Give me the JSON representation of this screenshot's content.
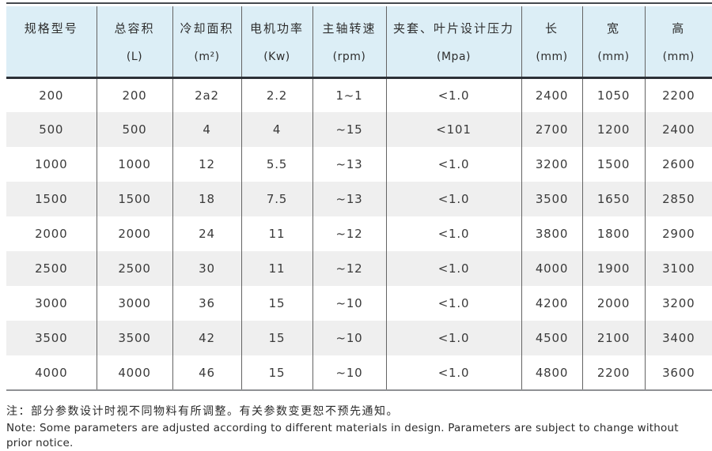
{
  "table": {
    "columns": [
      {
        "name": "规格型号",
        "unit": ""
      },
      {
        "name": "总容积",
        "unit": "(L)"
      },
      {
        "name": "冷却面积",
        "unit": "(m²)"
      },
      {
        "name": "电机功率",
        "unit": "(Kw)"
      },
      {
        "name": "主轴转速",
        "unit": "(rpm)"
      },
      {
        "name": "夹套、叶片设计压力",
        "unit": "(Mpa)"
      },
      {
        "name": "长",
        "unit": "(mm)"
      },
      {
        "name": "宽",
        "unit": "(mm)"
      },
      {
        "name": "高",
        "unit": "(mm)"
      }
    ],
    "rows": [
      [
        "200",
        "200",
        "2a2",
        "2.2",
        "1~1",
        "<1.0",
        "2400",
        "1050",
        "2200"
      ],
      [
        "500",
        "500",
        "4",
        "4",
        "~15",
        "<101",
        "2700",
        "1200",
        "2400"
      ],
      [
        "1000",
        "1000",
        "12",
        "5.5",
        "~13",
        "<1.0",
        "3200",
        "1500",
        "2600"
      ],
      [
        "1500",
        "1500",
        "18",
        "7.5",
        "~13",
        "<1.0",
        "3500",
        "1650",
        "2850"
      ],
      [
        "2000",
        "2000",
        "24",
        "11",
        "~12",
        "<1.0",
        "3800",
        "1800",
        "2900"
      ],
      [
        "2500",
        "2500",
        "30",
        "11",
        "~12",
        "<1.0",
        "4000",
        "1900",
        "3100"
      ],
      [
        "3000",
        "3000",
        "36",
        "15",
        "~10",
        "<1.0",
        "4200",
        "2000",
        "3200"
      ],
      [
        "3500",
        "3500",
        "42",
        "15",
        "~10",
        "<1.0",
        "4500",
        "2100",
        "3400"
      ],
      [
        "4000",
        "4000",
        "46",
        "15",
        "~10",
        "<1.0",
        "4800",
        "2200",
        "3600"
      ]
    ]
  },
  "notes": {
    "zh": "注：部分参数设计时视不同物料有所调整。有关参数变更恕不预先通知。",
    "en": "Note: Some parameters are adjusted according to different materials in design. Parameters are subject to change without prior notice."
  },
  "colors": {
    "header_bg": "#dceef6",
    "stripe_bg": "#efefef",
    "top_line": "#45494e",
    "header_rule": "#2c3137",
    "bottom_line": "#8f9194",
    "grid_line": "#646464",
    "text": "#3a3a3a"
  }
}
